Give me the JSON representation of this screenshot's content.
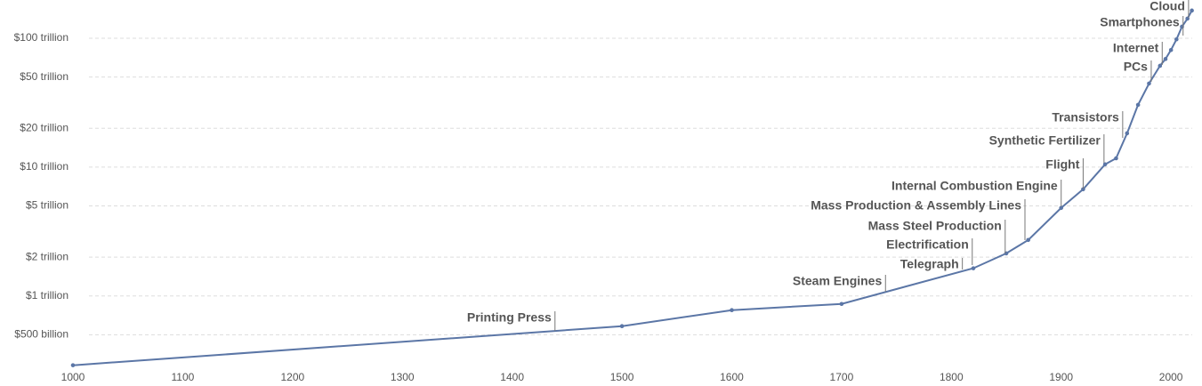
{
  "chart_data": {
    "type": "line",
    "x": [
      1000,
      1500,
      1600,
      1700,
      1820,
      1850,
      1870,
      1900,
      1920,
      1940,
      1950,
      1960,
      1970,
      1980,
      1990,
      1995,
      2000,
      2005,
      2010,
      2015,
      2019
    ],
    "values": [
      290000000000,
      583000000000,
      776000000000,
      867000000000,
      1640000000000,
      2140000000000,
      2720000000000,
      4820000000000,
      6730000000000,
      10500000000000,
      11700000000000,
      18300000000000,
      30400000000000,
      44500000000000,
      61100000000000,
      69000000000000,
      81000000000000,
      98000000000000,
      123000000000000,
      142000000000000,
      164000000000000
    ],
    "color": "#5b76a6",
    "log_scale": true,
    "grid": true,
    "xlim": [
      1000,
      2025
    ],
    "xticks": [
      1000,
      1100,
      1200,
      1300,
      1400,
      1500,
      1600,
      1700,
      1800,
      1900,
      2000
    ],
    "ylim": [
      250000000000,
      180000000000000
    ],
    "yticks": [
      {
        "value": 500000000000,
        "label": "$500 billion"
      },
      {
        "value": 1000000000000,
        "label": "$1 trillion"
      },
      {
        "value": 2000000000000,
        "label": "$2 trillion"
      },
      {
        "value": 5000000000000,
        "label": "$5 trillion"
      },
      {
        "value": 10000000000000,
        "label": "$10 trillion"
      },
      {
        "value": 20000000000000,
        "label": "$20 trillion"
      },
      {
        "value": 50000000000000,
        "label": "$50 trillion"
      },
      {
        "value": 100000000000000,
        "label": "$100 trillion"
      }
    ],
    "annotations": [
      {
        "label": "Printing Press",
        "x": 1439
      },
      {
        "label": "Steam Engines",
        "x": 1740
      },
      {
        "label": "Telegraph",
        "x": 1810
      },
      {
        "label": "Electrification",
        "x": 1819
      },
      {
        "label": "Mass Steel Production",
        "x": 1849
      },
      {
        "label": "Mass Production & Assembly Lines",
        "x": 1867
      },
      {
        "label": "Internal Combustion Engine",
        "x": 1900
      },
      {
        "label": "Flight",
        "x": 1920
      },
      {
        "label": "Synthetic Fertilizer",
        "x": 1939
      },
      {
        "label": "Transistors",
        "x": 1956
      },
      {
        "label": "PCs",
        "x": 1982
      },
      {
        "label": "Internet",
        "x": 1992
      },
      {
        "label": "Smartphones",
        "x": 2011
      },
      {
        "label": "Cloud",
        "x": 2016
      }
    ]
  }
}
